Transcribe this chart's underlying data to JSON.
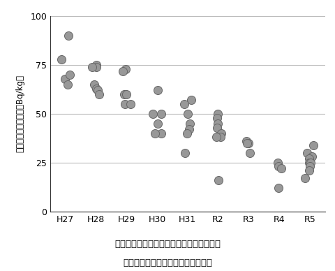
{
  "categories": [
    "H27",
    "H28",
    "H29",
    "H30",
    "H31",
    "R2",
    "R3",
    "R4",
    "R5"
  ],
  "data_points": {
    "H27": [
      78,
      90,
      68,
      65,
      70
    ],
    "H28": [
      75,
      74,
      74,
      65,
      63,
      62,
      60
    ],
    "H29": [
      73,
      72,
      55,
      55,
      60,
      60
    ],
    "H30": [
      50,
      50,
      45,
      40,
      40,
      62
    ],
    "H31": [
      57,
      55,
      50,
      45,
      42,
      40,
      30
    ],
    "R2": [
      50,
      48,
      45,
      43,
      40,
      38,
      38,
      16
    ],
    "R3": [
      36,
      35,
      35,
      30
    ],
    "R4": [
      25,
      23,
      22,
      12
    ],
    "R5": [
      34,
      30,
      28,
      27,
      25,
      25,
      23,
      21,
      17
    ]
  },
  "ylabel": "放射性セシウム濃度（Bq/kg）",
  "ylim": [
    0,
    100
  ],
  "yticks": [
    0,
    25,
    50,
    75,
    100
  ],
  "caption_line1": "図：ギンブナの放射性セシウム濃度の推移",
  "caption_line2": "（最後に基準値を上回った日以降）",
  "dot_color": "#989898",
  "dot_edgecolor": "#666666",
  "bg_color": "#ffffff",
  "grid_color": "#bbbbbb",
  "spine_color": "#333333"
}
